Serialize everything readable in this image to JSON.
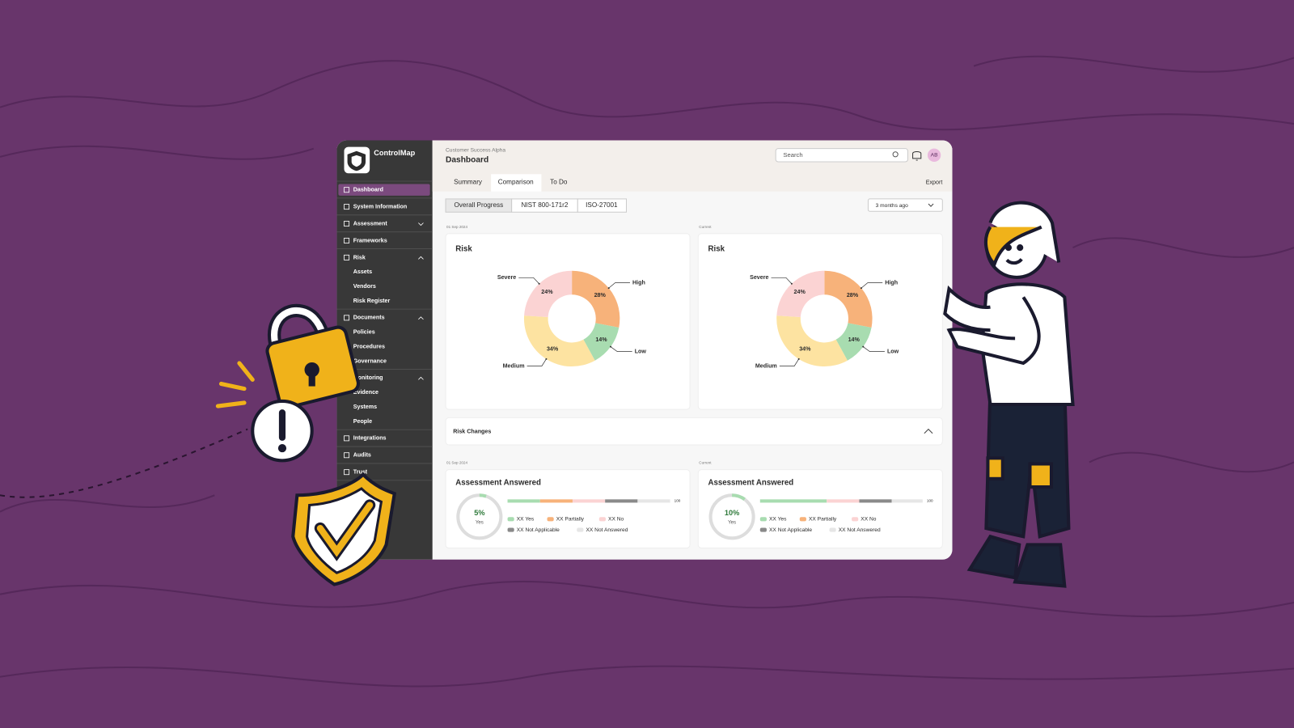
{
  "app": {
    "name": "ControlMap"
  },
  "sidebar": {
    "items": [
      {
        "label": "Dashboard"
      },
      {
        "label": "System Information"
      },
      {
        "label": "Assessment"
      },
      {
        "label": "Frameworks"
      },
      {
        "label": "Risk",
        "children": [
          "Assets",
          "Vendors",
          "Risk Register"
        ]
      },
      {
        "label": "Documents",
        "children": [
          "Policies",
          "Procedures",
          "Governance"
        ]
      },
      {
        "label": "Monitoring",
        "children": [
          "Evidence",
          "Systems",
          "People"
        ]
      },
      {
        "label": "Integrations"
      },
      {
        "label": "Audits"
      },
      {
        "label": "Trust"
      }
    ]
  },
  "header": {
    "workspace": "Customer Success Alpha",
    "title": "Dashboard",
    "search": "Search",
    "avatar": "AB"
  },
  "tabs": [
    "Summary",
    "Comparison",
    "To Do"
  ],
  "export": "Export",
  "filters": [
    "Overall Progress",
    "NIST 800-171r2",
    "ISO-27001"
  ],
  "period": "3 months ago",
  "risk_changes": "Risk Changes",
  "chart_data": [
    {
      "type": "pie",
      "subtitle": "01 Sep 2024",
      "title": "Risk",
      "categories": [
        "High",
        "Low",
        "Medium",
        "Severe"
      ],
      "values": [
        28,
        14,
        34,
        24
      ],
      "value_labels": [
        "28%",
        "14%",
        "34%",
        "24%"
      ],
      "colors": [
        "#f7b27a",
        "#a8dcb0",
        "#fde3a1",
        "#fbd3d3"
      ]
    },
    {
      "type": "pie",
      "subtitle": "Current",
      "title": "Risk",
      "categories": [
        "High",
        "Low",
        "Medium",
        "Severe"
      ],
      "values": [
        28,
        14,
        34,
        24
      ],
      "value_labels": [
        "28%",
        "14%",
        "34%",
        "24%"
      ],
      "colors": [
        "#f7b27a",
        "#a8dcb0",
        "#fde3a1",
        "#fbd3d3"
      ]
    },
    {
      "type": "hbar",
      "subtitle": "01 Sep 2024",
      "title": "Assessment Answered",
      "gauge": {
        "value": 5,
        "value_label": "5%",
        "label": "Yes"
      },
      "xlim": [
        0,
        100
      ],
      "xticks": [
        100
      ],
      "series": [
        {
          "name": "XX Yes",
          "color": "#a8dcb0",
          "values": [
            20
          ]
        },
        {
          "name": "XX Partially",
          "color": "#f7b27a",
          "values": [
            20
          ]
        },
        {
          "name": "XX No",
          "color": "#fbd3d3",
          "values": [
            20
          ]
        },
        {
          "name": "XX Not Applicable",
          "color": "#8a8a8a",
          "values": [
            20
          ]
        },
        {
          "name": "XX Not Answered",
          "color": "#e6e6e6",
          "values": [
            20
          ]
        }
      ]
    },
    {
      "type": "hbar",
      "subtitle": "Current",
      "title": "Assessment Answered",
      "gauge": {
        "value": 10,
        "value_label": "10%",
        "label": "Yes"
      },
      "xlim": [
        0,
        100
      ],
      "xticks": [
        100
      ],
      "series": [
        {
          "name": "XX Yes",
          "color": "#a8dcb0",
          "values": [
            41
          ]
        },
        {
          "name": "XX Partially",
          "color": "#f7b27a",
          "values": [
            0
          ]
        },
        {
          "name": "XX No",
          "color": "#fbd3d3",
          "values": [
            20
          ]
        },
        {
          "name": "XX Not Applicable",
          "color": "#8a8a8a",
          "values": [
            20
          ]
        },
        {
          "name": "XX Not Answered",
          "color": "#e6e6e6",
          "values": [
            19
          ]
        }
      ]
    }
  ]
}
